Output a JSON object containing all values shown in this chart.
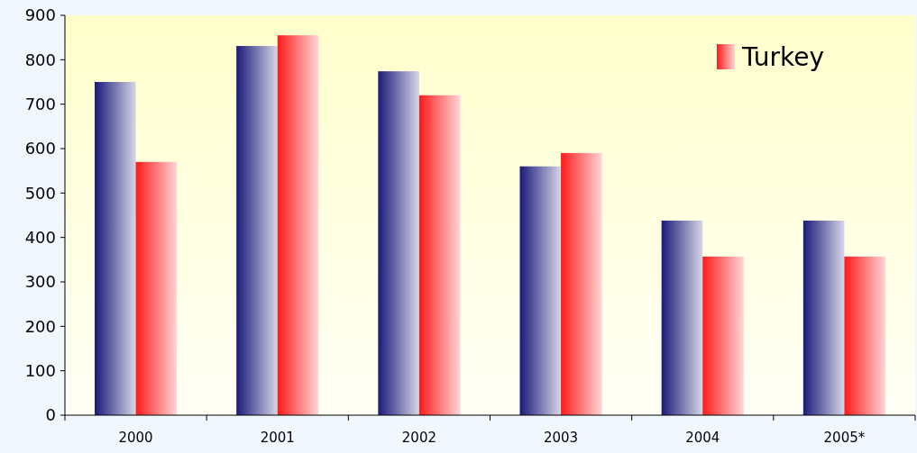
{
  "chart_data": {
    "type": "bar",
    "categories": [
      "2000",
      "2001",
      "2002",
      "2003",
      "2004",
      "2005*"
    ],
    "series": [
      {
        "color": "#1a1a7a",
        "values": [
          750,
          831,
          774,
          560,
          438,
          438
        ]
      },
      {
        "name": "Turkey",
        "color": "#ff1a1a",
        "values": [
          570,
          855,
          720,
          590,
          357,
          357
        ]
      }
    ],
    "ylim": [
      0,
      900
    ],
    "yticks": [
      0,
      100,
      200,
      300,
      400,
      500,
      600,
      700,
      800,
      900
    ],
    "grid": false,
    "legend": "top right"
  }
}
